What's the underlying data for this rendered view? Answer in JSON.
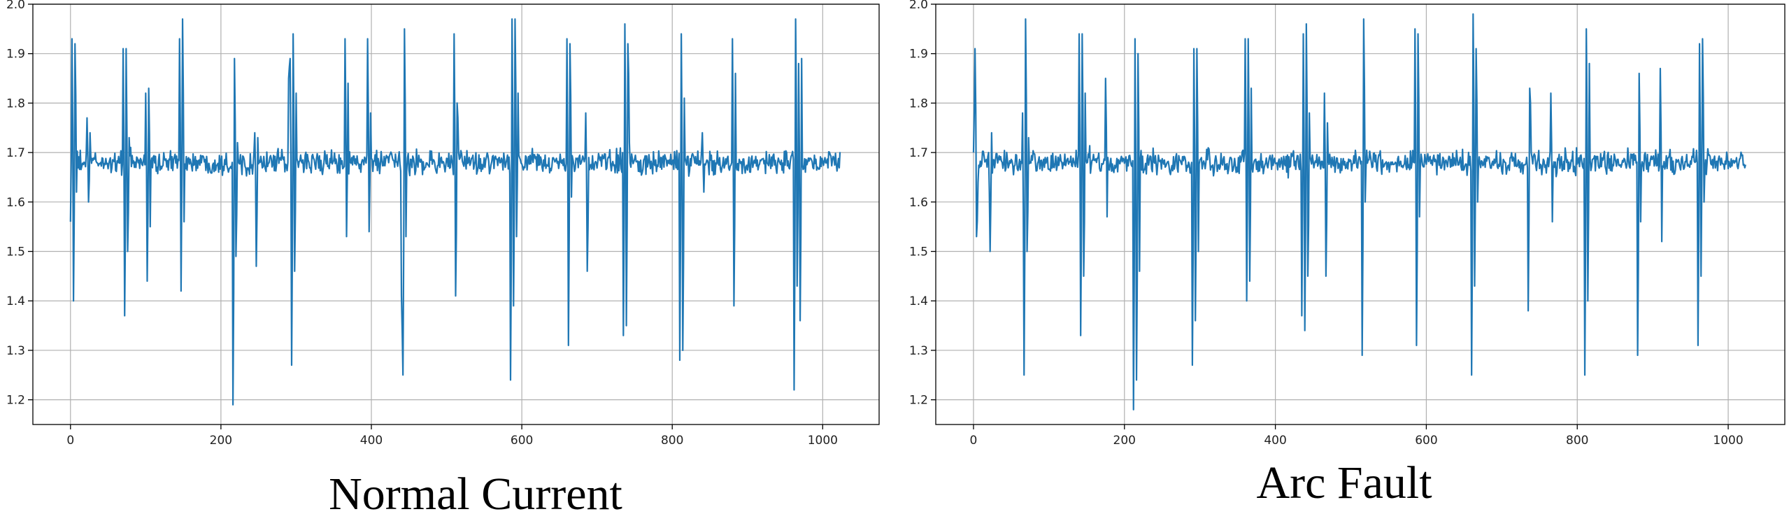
{
  "colors": {
    "series": "#1f77b4",
    "grid": "#b0b0b0",
    "frame": "#000000"
  },
  "chart_data": [
    {
      "type": "line",
      "caption": "Normal Current",
      "title": "",
      "xlabel": "",
      "ylabel": "",
      "xlim": [
        -50,
        1075
      ],
      "ylim": [
        1.15,
        2.0
      ],
      "xticks": [
        0,
        200,
        400,
        600,
        800,
        1000
      ],
      "yticks": [
        1.2,
        1.3,
        1.4,
        1.5,
        1.6,
        1.7,
        1.8,
        1.9,
        2.0
      ],
      "xtick_labels": [
        "0",
        "200",
        "400",
        "600",
        "800",
        "1000"
      ],
      "ytick_labels": [
        "1.2",
        "1.3",
        "1.4",
        "1.5",
        "1.6",
        "1.7",
        "1.8",
        "1.9",
        "2.0"
      ],
      "grid": true,
      "series": [
        {
          "baseline": 1.68,
          "noise": 0.022,
          "n_points": 1024,
          "spikes": [
            {
              "x": 0,
              "values": [
                1.56,
                1.93,
                1.4,
                1.92,
                1.62
              ]
            },
            {
              "x": 22,
              "values": [
                1.77,
                1.6,
                1.74
              ]
            },
            {
              "x": 70,
              "values": [
                1.91,
                1.37,
                1.91,
                1.5,
                1.73
              ]
            },
            {
              "x": 100,
              "values": [
                1.82,
                1.44,
                1.83,
                1.55
              ]
            },
            {
              "x": 145,
              "values": [
                1.93,
                1.42,
                1.97,
                1.56
              ]
            },
            {
              "x": 216,
              "values": [
                1.19,
                1.89,
                1.49,
                1.72
              ]
            },
            {
              "x": 245,
              "values": [
                1.74,
                1.47,
                1.73
              ]
            },
            {
              "x": 290,
              "values": [
                1.85,
                1.89,
                1.27,
                1.94,
                1.46,
                1.82
              ]
            },
            {
              "x": 365,
              "values": [
                1.93,
                1.53,
                1.84
              ]
            },
            {
              "x": 395,
              "values": [
                1.93,
                1.54,
                1.78
              ]
            },
            {
              "x": 440,
              "values": [
                1.41,
                1.25,
                1.95,
                1.53
              ]
            },
            {
              "x": 510,
              "values": [
                1.94,
                1.41,
                1.8,
                1.7
              ]
            },
            {
              "x": 585,
              "values": [
                1.24,
                1.97,
                1.39,
                1.97,
                1.53,
                1.82
              ]
            },
            {
              "x": 660,
              "values": [
                1.93,
                1.31,
                1.92,
                1.61
              ]
            },
            {
              "x": 685,
              "values": [
                1.78,
                1.46,
                1.69
              ]
            },
            {
              "x": 735,
              "values": [
                1.33,
                1.96,
                1.35,
                1.92,
                1.72
              ]
            },
            {
              "x": 810,
              "values": [
                1.28,
                1.94,
                1.3,
                1.81
              ]
            },
            {
              "x": 840,
              "values": [
                1.74,
                1.62
              ]
            },
            {
              "x": 880,
              "values": [
                1.93,
                1.39,
                1.86
              ]
            },
            {
              "x": 962,
              "values": [
                1.22,
                1.97,
                1.43,
                1.88,
                1.36,
                1.89
              ]
            }
          ]
        }
      ]
    },
    {
      "type": "line",
      "caption": "Arc Fault",
      "title": "",
      "xlabel": "",
      "ylabel": "",
      "xlim": [
        -50,
        1075
      ],
      "ylim": [
        1.15,
        2.0
      ],
      "xticks": [
        0,
        200,
        400,
        600,
        800,
        1000
      ],
      "yticks": [
        1.2,
        1.3,
        1.4,
        1.5,
        1.6,
        1.7,
        1.8,
        1.9,
        2.0
      ],
      "xtick_labels": [
        "0",
        "200",
        "400",
        "600",
        "800",
        "1000"
      ],
      "ytick_labels": [
        "1.2",
        "1.3",
        "1.4",
        "1.5",
        "1.6",
        "1.7",
        "1.8",
        "1.9",
        "2.0"
      ],
      "grid": true,
      "series": [
        {
          "baseline": 1.68,
          "noise": 0.022,
          "n_points": 1024,
          "spikes": [
            {
              "x": 0,
              "values": [
                1.7,
                1.91,
                1.53,
                1.64
              ]
            },
            {
              "x": 20,
              "values": [
                1.7,
                1.5,
                1.74
              ]
            },
            {
              "x": 65,
              "values": [
                1.78,
                1.25,
                1.97,
                1.5,
                1.73
              ]
            },
            {
              "x": 140,
              "values": [
                1.94,
                1.33,
                1.94,
                1.45,
                1.82
              ]
            },
            {
              "x": 175,
              "values": [
                1.85,
                1.57
              ]
            },
            {
              "x": 212,
              "values": [
                1.18,
                1.93,
                1.24,
                1.9,
                1.46
              ]
            },
            {
              "x": 290,
              "values": [
                1.27,
                1.91,
                1.36,
                1.91,
                1.5
              ]
            },
            {
              "x": 360,
              "values": [
                1.93,
                1.4,
                1.93,
                1.44,
                1.83
              ]
            },
            {
              "x": 435,
              "values": [
                1.37,
                1.94,
                1.34,
                1.96,
                1.45,
                1.78
              ]
            },
            {
              "x": 465,
              "values": [
                1.82,
                1.45,
                1.76
              ]
            },
            {
              "x": 515,
              "values": [
                1.29,
                1.97,
                1.6
              ]
            },
            {
              "x": 585,
              "values": [
                1.95,
                1.31,
                1.94,
                1.57
              ]
            },
            {
              "x": 660,
              "values": [
                1.25,
                1.98,
                1.43,
                1.91,
                1.6
              ]
            },
            {
              "x": 735,
              "values": [
                1.38,
                1.83,
                1.7
              ]
            },
            {
              "x": 765,
              "values": [
                1.82,
                1.56
              ]
            },
            {
              "x": 810,
              "values": [
                1.25,
                1.95,
                1.4,
                1.88
              ]
            },
            {
              "x": 880,
              "values": [
                1.29,
                1.86,
                1.56
              ]
            },
            {
              "x": 910,
              "values": [
                1.87,
                1.52
              ]
            },
            {
              "x": 960,
              "values": [
                1.31,
                1.92,
                1.45,
                1.93,
                1.6
              ]
            }
          ]
        }
      ]
    }
  ]
}
